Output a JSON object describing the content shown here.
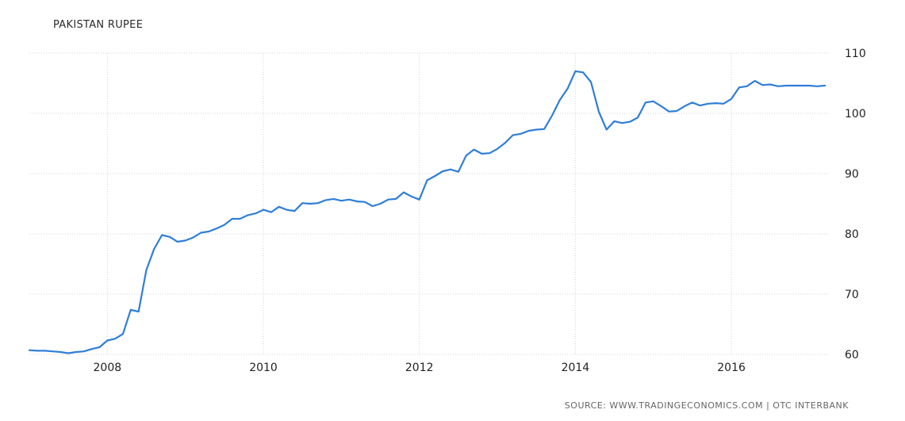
{
  "chart_data": {
    "type": "line",
    "title": "PAKISTAN RUPEE",
    "source": "SOURCE: WWW.TRADINGECONOMICS.COM | OTC INTERBANK",
    "xlabel": "",
    "ylabel": "",
    "xlim": [
      2007.0,
      2017.25
    ],
    "ylim": [
      60,
      110
    ],
    "x_ticks": [
      2008,
      2010,
      2012,
      2014,
      2016
    ],
    "x_tick_labels": [
      "2008",
      "2010",
      "2012",
      "2014",
      "2016"
    ],
    "y_ticks": [
      60,
      70,
      80,
      90,
      100,
      110
    ],
    "y_tick_labels": [
      "60",
      "70",
      "80",
      "90",
      "100",
      "110"
    ],
    "y_axis_position": "right",
    "grid": true,
    "line_color": "#2f7ed8",
    "series": [
      {
        "x": [
          2007.0,
          2007.1,
          2007.2,
          2007.3,
          2007.4,
          2007.5,
          2007.6,
          2007.7,
          2007.8,
          2007.9,
          2008.0,
          2008.1,
          2008.2,
          2008.3,
          2008.4,
          2008.5,
          2008.6,
          2008.7,
          2008.8,
          2008.9,
          2009.0,
          2009.1,
          2009.2,
          2009.3,
          2009.4,
          2009.5,
          2009.6,
          2009.7,
          2009.8,
          2009.9,
          2010.0,
          2010.1,
          2010.2,
          2010.3,
          2010.4,
          2010.5,
          2010.6,
          2010.7,
          2010.8,
          2010.9,
          2011.0,
          2011.1,
          2011.2,
          2011.3,
          2011.4,
          2011.5,
          2011.6,
          2011.7,
          2011.8,
          2011.9,
          2012.0,
          2012.1,
          2012.2,
          2012.3,
          2012.4,
          2012.5,
          2012.6,
          2012.7,
          2012.8,
          2012.9,
          2013.0,
          2013.1,
          2013.2,
          2013.3,
          2013.4,
          2013.5,
          2013.6,
          2013.7,
          2013.8,
          2013.9,
          2014.0,
          2014.1,
          2014.2,
          2014.3,
          2014.4,
          2014.5,
          2014.6,
          2014.7,
          2014.8,
          2014.9,
          2015.0,
          2015.1,
          2015.2,
          2015.3,
          2015.4,
          2015.5,
          2015.6,
          2015.7,
          2015.8,
          2015.9,
          2016.0,
          2016.1,
          2016.2,
          2016.3,
          2016.4,
          2016.5,
          2016.6,
          2016.7,
          2016.8,
          2016.9,
          2017.0,
          2017.1,
          2017.2
        ],
        "values": [
          60.7,
          60.6,
          60.6,
          60.5,
          60.4,
          60.2,
          60.4,
          60.5,
          60.9,
          61.2,
          62.3,
          62.6,
          63.4,
          67.4,
          67.1,
          74.0,
          77.5,
          79.8,
          79.5,
          78.7,
          78.9,
          79.4,
          80.2,
          80.4,
          80.9,
          81.5,
          82.5,
          82.5,
          83.1,
          83.4,
          84.0,
          83.6,
          84.5,
          84.0,
          83.8,
          85.1,
          85.0,
          85.1,
          85.6,
          85.8,
          85.5,
          85.7,
          85.4,
          85.3,
          84.6,
          85.0,
          85.7,
          85.8,
          86.9,
          86.2,
          85.7,
          88.9,
          89.6,
          90.4,
          90.7,
          90.3,
          93.0,
          94.0,
          93.3,
          93.4,
          94.1,
          95.1,
          96.4,
          96.6,
          97.1,
          97.3,
          97.4,
          99.6,
          102.2,
          104.1,
          107.0,
          106.8,
          105.2,
          100.3,
          97.3,
          98.7,
          98.4,
          98.6,
          99.3,
          101.8,
          102.0,
          101.2,
          100.3,
          100.4,
          101.2,
          101.8,
          101.3,
          101.6,
          101.7,
          101.6,
          102.4,
          104.3,
          104.5,
          105.4,
          104.7,
          104.8,
          104.5,
          104.6,
          104.6,
          104.6,
          104.6,
          104.5,
          104.6
        ]
      }
    ]
  }
}
